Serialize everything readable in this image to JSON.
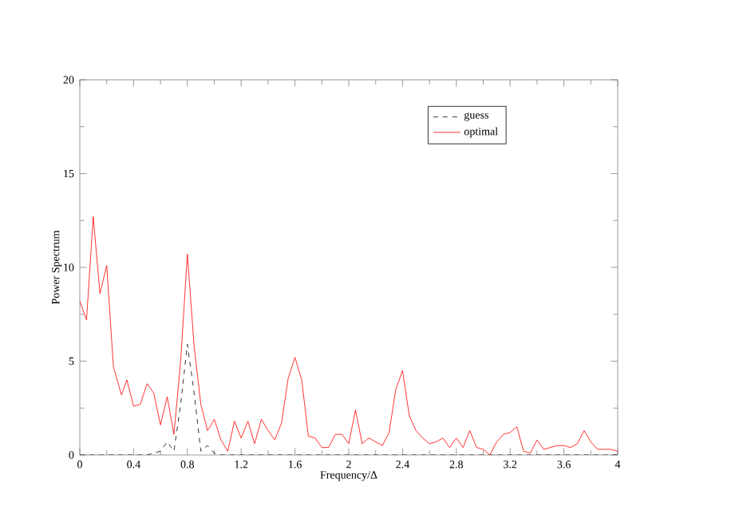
{
  "chart_data": {
    "type": "line",
    "xlabel": "Frequency/Δ",
    "ylabel": "Power Spectrum",
    "xlim": [
      0,
      4
    ],
    "ylim": [
      0,
      20
    ],
    "xticks": [
      0,
      0.4,
      0.8,
      1.2,
      1.6,
      2,
      2.4,
      2.8,
      3.2,
      3.6,
      4
    ],
    "yticks": [
      0,
      5,
      10,
      15,
      20
    ],
    "legend": "top right",
    "grid": false,
    "marker": "none",
    "series": [
      {
        "name": "guess",
        "color": "#000000",
        "line_style": "dashed",
        "x": [
          0,
          0.5,
          0.6,
          0.65,
          0.7,
          0.75,
          0.8,
          0.85,
          0.9,
          0.95,
          1.0,
          1.05,
          4
        ],
        "values": [
          0,
          0,
          0.2,
          0.7,
          0.2,
          2.7,
          5.9,
          3.3,
          0.2,
          0.5,
          0.1,
          0,
          0
        ]
      },
      {
        "name": "optimal",
        "color": "#ff0000",
        "line_style": "solid",
        "x": [
          0,
          0.05,
          0.1,
          0.15,
          0.2,
          0.25,
          0.31,
          0.35,
          0.4,
          0.45,
          0.5,
          0.55,
          0.6,
          0.65,
          0.7,
          0.75,
          0.8,
          0.85,
          0.9,
          0.95,
          1.0,
          1.05,
          1.1,
          1.15,
          1.2,
          1.25,
          1.3,
          1.35,
          1.4,
          1.45,
          1.5,
          1.55,
          1.6,
          1.65,
          1.7,
          1.75,
          1.8,
          1.85,
          1.9,
          1.95,
          2.0,
          2.05,
          2.1,
          2.15,
          2.2,
          2.25,
          2.3,
          2.35,
          2.4,
          2.45,
          2.5,
          2.55,
          2.6,
          2.65,
          2.7,
          2.75,
          2.8,
          2.85,
          2.9,
          2.95,
          3.0,
          3.05,
          3.1,
          3.15,
          3.2,
          3.25,
          3.3,
          3.35,
          3.4,
          3.45,
          3.5,
          3.55,
          3.6,
          3.65,
          3.7,
          3.75,
          3.8,
          3.85,
          3.95,
          4.0
        ],
        "values": [
          8.2,
          7.2,
          12.7,
          8.6,
          10.1,
          4.7,
          3.2,
          4.0,
          2.6,
          2.7,
          3.8,
          3.3,
          1.6,
          3.1,
          1.1,
          5.0,
          10.7,
          5.8,
          2.7,
          1.3,
          1.9,
          0.8,
          0.2,
          1.8,
          0.9,
          1.8,
          0.6,
          1.9,
          1.3,
          0.8,
          1.7,
          4.1,
          5.2,
          4.0,
          1.0,
          0.9,
          0.4,
          0.4,
          1.1,
          1.1,
          0.6,
          2.4,
          0.6,
          0.9,
          0.7,
          0.5,
          1.2,
          3.5,
          4.5,
          2.1,
          1.3,
          0.9,
          0.6,
          0.7,
          0.9,
          0.4,
          0.9,
          0.4,
          1.3,
          0.4,
          0.3,
          0.0,
          0.7,
          1.1,
          1.2,
          1.5,
          0.2,
          0.1,
          0.8,
          0.3,
          0.4,
          0.5,
          0.5,
          0.4,
          0.6,
          1.3,
          0.7,
          0.3,
          0.3,
          0.2
        ]
      }
    ]
  }
}
